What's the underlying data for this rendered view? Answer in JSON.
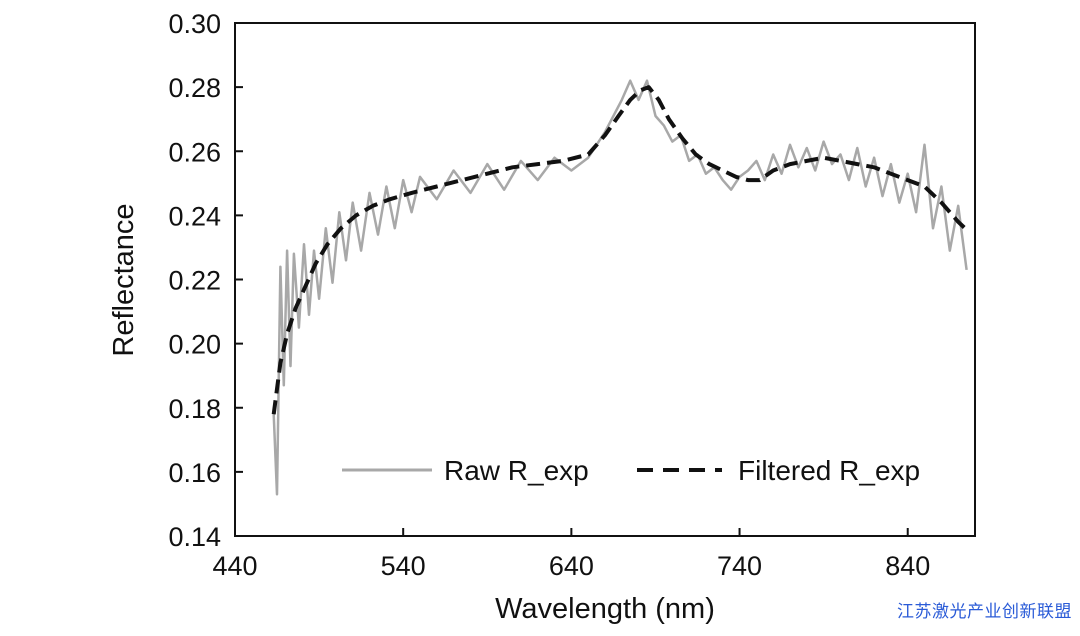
{
  "chart_data": {
    "type": "line",
    "title": "",
    "xlabel": "Wavelength (nm)",
    "ylabel": "Reflectance",
    "xlim": [
      440,
      880
    ],
    "ylim": [
      0.14,
      0.3
    ],
    "xticks": [
      440,
      540,
      640,
      740,
      840
    ],
    "yticks": [
      "0.14",
      "0.16",
      "0.18",
      "0.20",
      "0.22",
      "0.24",
      "0.26",
      "0.28",
      "0.30"
    ],
    "grid": false,
    "legend_position": "bottom-right",
    "series": [
      {
        "name": "Raw R_exp",
        "style": "solid",
        "color": "#a8a8a8",
        "x": [
          463,
          465,
          467,
          469,
          471,
          473,
          475,
          478,
          481,
          484,
          487,
          490,
          494,
          498,
          502,
          506,
          510,
          515,
          520,
          525,
          530,
          535,
          540,
          545,
          550,
          560,
          570,
          580,
          590,
          600,
          610,
          620,
          630,
          640,
          650,
          655,
          660,
          665,
          670,
          675,
          680,
          685,
          690,
          695,
          700,
          705,
          710,
          715,
          720,
          725,
          730,
          735,
          740,
          745,
          750,
          755,
          760,
          765,
          770,
          775,
          780,
          785,
          790,
          795,
          800,
          805,
          810,
          815,
          820,
          825,
          830,
          835,
          840,
          845,
          850,
          855,
          860,
          865,
          870,
          875
        ],
        "y": [
          0.178,
          0.153,
          0.224,
          0.187,
          0.229,
          0.193,
          0.228,
          0.205,
          0.231,
          0.209,
          0.229,
          0.214,
          0.236,
          0.219,
          0.241,
          0.226,
          0.244,
          0.229,
          0.247,
          0.234,
          0.249,
          0.236,
          0.251,
          0.241,
          0.252,
          0.245,
          0.254,
          0.247,
          0.256,
          0.248,
          0.257,
          0.251,
          0.258,
          0.254,
          0.258,
          0.262,
          0.266,
          0.271,
          0.276,
          0.282,
          0.276,
          0.282,
          0.271,
          0.268,
          0.263,
          0.265,
          0.257,
          0.259,
          0.253,
          0.255,
          0.251,
          0.248,
          0.252,
          0.254,
          0.257,
          0.251,
          0.259,
          0.253,
          0.262,
          0.255,
          0.261,
          0.254,
          0.263,
          0.256,
          0.259,
          0.251,
          0.261,
          0.249,
          0.258,
          0.246,
          0.256,
          0.244,
          0.253,
          0.241,
          0.262,
          0.236,
          0.249,
          0.229,
          0.243,
          0.223
        ]
      },
      {
        "name": "Filtered R_exp",
        "style": "dashed",
        "color": "#111111",
        "x": [
          463,
          467,
          471,
          476,
          482,
          488,
          495,
          503,
          512,
          522,
          532,
          545,
          560,
          575,
          590,
          605,
          620,
          635,
          650,
          660,
          668,
          675,
          681,
          686,
          692,
          698,
          706,
          714,
          722,
          730,
          738,
          745,
          752,
          760,
          770,
          780,
          790,
          800,
          810,
          820,
          830,
          840,
          850,
          860,
          870,
          876
        ],
        "y": [
          0.178,
          0.194,
          0.203,
          0.211,
          0.218,
          0.225,
          0.231,
          0.236,
          0.24,
          0.243,
          0.245,
          0.247,
          0.249,
          0.251,
          0.253,
          0.255,
          0.256,
          0.257,
          0.259,
          0.265,
          0.271,
          0.276,
          0.279,
          0.28,
          0.276,
          0.27,
          0.264,
          0.259,
          0.256,
          0.254,
          0.252,
          0.251,
          0.251,
          0.254,
          0.256,
          0.257,
          0.258,
          0.257,
          0.256,
          0.255,
          0.253,
          0.251,
          0.249,
          0.244,
          0.238,
          0.235
        ]
      }
    ]
  },
  "watermark": "江苏激光产业创新联盟"
}
